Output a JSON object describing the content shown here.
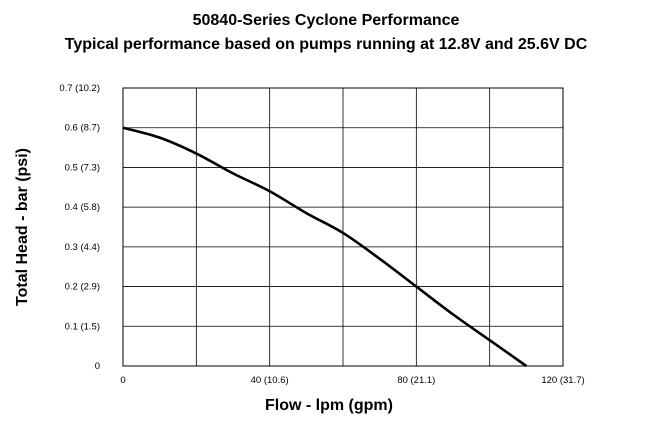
{
  "chart_data": {
    "type": "line",
    "title": "50840-Series Cyclone Performance",
    "subtitle": "Typical performance based on pumps running at 12.8V and 25.6V DC",
    "xlabel": "Flow - lpm (gpm)",
    "ylabel": "Total Head - bar (psi)",
    "xlim": [
      0,
      120
    ],
    "ylim": [
      0,
      0.7
    ],
    "grid": true,
    "x_ticks": [
      {
        "value": 0,
        "label": "0"
      },
      {
        "value": 40,
        "label": "40 (10.6)"
      },
      {
        "value": 80,
        "label": "80 (21.1)"
      },
      {
        "value": 120,
        "label": "120 (31.7)"
      }
    ],
    "y_ticks": [
      {
        "value": 0,
        "label": "0"
      },
      {
        "value": 0.1,
        "label": "0.1 (1.5)"
      },
      {
        "value": 0.2,
        "label": "0.2 (2.9)"
      },
      {
        "value": 0.3,
        "label": "0.3 (4.4)"
      },
      {
        "value": 0.4,
        "label": "0.4 (5.8)"
      },
      {
        "value": 0.5,
        "label": "0.5 (7.3)"
      },
      {
        "value": 0.6,
        "label": "0.6 (8.7)"
      },
      {
        "value": 0.7,
        "label": "0.7 (10.2)"
      }
    ],
    "series": [
      {
        "color": "#000000",
        "points": [
          {
            "x": 0,
            "y": 0.6
          },
          {
            "x": 10,
            "y": 0.575
          },
          {
            "x": 20,
            "y": 0.535
          },
          {
            "x": 30,
            "y": 0.485
          },
          {
            "x": 40,
            "y": 0.44
          },
          {
            "x": 50,
            "y": 0.385
          },
          {
            "x": 60,
            "y": 0.335
          },
          {
            "x": 70,
            "y": 0.27
          },
          {
            "x": 80,
            "y": 0.2
          },
          {
            "x": 90,
            "y": 0.13
          },
          {
            "x": 100,
            "y": 0.065
          },
          {
            "x": 110,
            "y": 0.0
          }
        ]
      }
    ]
  }
}
